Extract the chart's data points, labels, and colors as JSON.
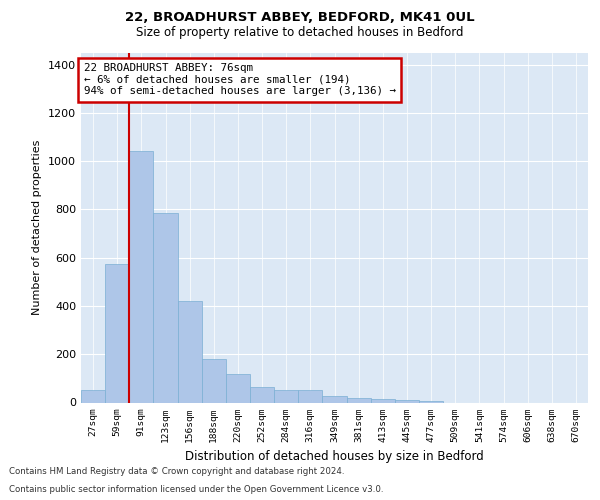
{
  "title1": "22, BROADHURST ABBEY, BEDFORD, MK41 0UL",
  "title2": "Size of property relative to detached houses in Bedford",
  "xlabel": "Distribution of detached houses by size in Bedford",
  "ylabel": "Number of detached properties",
  "categories": [
    "27sqm",
    "59sqm",
    "91sqm",
    "123sqm",
    "156sqm",
    "188sqm",
    "220sqm",
    "252sqm",
    "284sqm",
    "316sqm",
    "349sqm",
    "381sqm",
    "413sqm",
    "445sqm",
    "477sqm",
    "509sqm",
    "541sqm",
    "574sqm",
    "606sqm",
    "638sqm",
    "670sqm"
  ],
  "values": [
    50,
    575,
    1040,
    785,
    420,
    180,
    120,
    65,
    50,
    50,
    25,
    20,
    15,
    10,
    5,
    0,
    0,
    0,
    0,
    0,
    0
  ],
  "bar_color": "#aec6e8",
  "bar_edgecolor": "#7aafd4",
  "vline_x": 1.5,
  "vline_color": "#cc0000",
  "annotation_text": "22 BROADHURST ABBEY: 76sqm\n← 6% of detached houses are smaller (194)\n94% of semi-detached houses are larger (3,136) →",
  "annotation_box_color": "#cc0000",
  "annotation_fill": "#ffffff",
  "ylim": [
    0,
    1450
  ],
  "yticks": [
    0,
    200,
    400,
    600,
    800,
    1000,
    1200,
    1400
  ],
  "background_color": "#dce8f5",
  "footer1": "Contains HM Land Registry data © Crown copyright and database right 2024.",
  "footer2": "Contains public sector information licensed under the Open Government Licence v3.0."
}
